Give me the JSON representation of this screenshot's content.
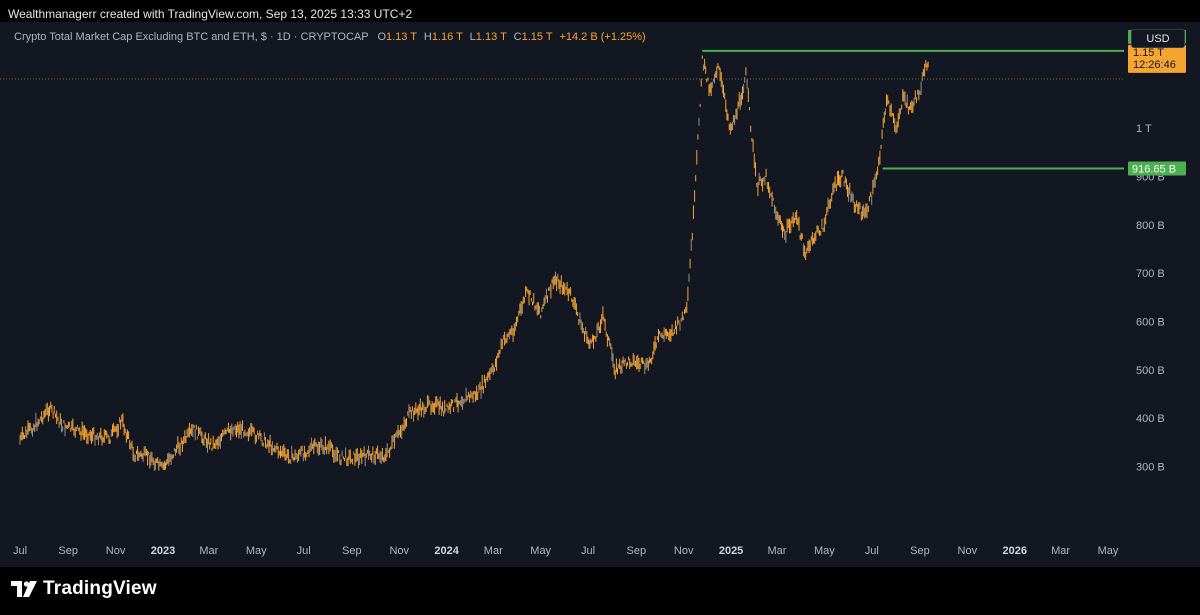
{
  "credit": "Wealthmanagerr created with TradingView.com, Sep 13, 2025 13:33 UTC+2",
  "legend": {
    "title": "Crypto Total Market Cap Excluding BTC and ETH, $ · 1D · CRYPTOCAP",
    "o_label": "O",
    "o_value": "1.13 T",
    "h_label": "H",
    "h_value": "1.16 T",
    "l_label": "L",
    "l_value": "1.13 T",
    "c_label": "C",
    "c_value": "1.15 T",
    "change": "+14.2 B (+1.25%)"
  },
  "currency_button": "USD",
  "brand": {
    "name": "TradingView",
    "icon": "tradingview-logo-icon"
  },
  "colors": {
    "page": "#000000",
    "panel": "#131722",
    "candle": "#f7a531",
    "hline": "#4caf50",
    "label_green": "#4caf50",
    "label_orange": "#f7a531",
    "axis_text": "#b2b5be"
  },
  "chart_data": {
    "type": "line",
    "title": "Crypto Total Market Cap Excluding BTC and ETH, $ · 1D · CRYPTOCAP",
    "x_ticks": [
      "Jul",
      "Sep",
      "Nov",
      "2023",
      "Mar",
      "May",
      "Jul",
      "Sep",
      "Nov",
      "2024",
      "Mar",
      "May",
      "Jul",
      "Sep",
      "Nov",
      "2025",
      "Mar",
      "May",
      "Jul",
      "Sep",
      "Nov",
      "2026",
      "Mar",
      "May"
    ],
    "y_ticks": [
      "1 T",
      "900 B",
      "800 B",
      "700 B",
      "600 B",
      "500 B",
      "400 B",
      "300 B"
    ],
    "y_range": [
      255,
      1200
    ],
    "series": [
      {
        "values_unit": "B",
        "dates": [
          "2022-07-01",
          "2022-07-20",
          "2022-08-08",
          "2022-08-25",
          "2022-09-10",
          "2022-10-01",
          "2022-10-25",
          "2022-11-09",
          "2022-11-25",
          "2022-12-15",
          "2022-12-31",
          "2023-01-20",
          "2023-02-10",
          "2023-03-05",
          "2023-03-10",
          "2023-04-01",
          "2023-04-18",
          "2023-05-10",
          "2023-06-10",
          "2023-06-20",
          "2023-07-14",
          "2023-08-01",
          "2023-08-18",
          "2023-09-11",
          "2023-10-01",
          "2023-10-15",
          "2023-11-01",
          "2023-11-15",
          "2023-12-01",
          "2023-12-15",
          "2023-12-31",
          "2024-01-20",
          "2024-02-10",
          "2024-03-01",
          "2024-03-14",
          "2024-03-28",
          "2024-04-13",
          "2024-05-01",
          "2024-05-20",
          "2024-06-10",
          "2024-06-25",
          "2024-07-05",
          "2024-07-20",
          "2024-08-05",
          "2024-08-25",
          "2024-09-15",
          "2024-10-01",
          "2024-10-20",
          "2024-11-05",
          "2024-11-15",
          "2024-11-25",
          "2024-12-05",
          "2024-12-15",
          "2024-12-31",
          "2025-01-10",
          "2025-01-20",
          "2025-02-03",
          "2025-02-15",
          "2025-03-01",
          "2025-03-11",
          "2025-03-25",
          "2025-04-07",
          "2025-04-20",
          "2025-05-01",
          "2025-05-12",
          "2025-05-25",
          "2025-06-10",
          "2025-06-22",
          "2025-07-01",
          "2025-07-10",
          "2025-07-20",
          "2025-08-01",
          "2025-08-10",
          "2025-08-20",
          "2025-09-01",
          "2025-09-13"
        ],
        "values": [
          355,
          385,
          420,
          385,
          375,
          365,
          360,
          395,
          325,
          320,
          295,
          340,
          375,
          345,
          350,
          380,
          375,
          355,
          320,
          320,
          340,
          340,
          318,
          320,
          325,
          322,
          370,
          410,
          420,
          430,
          415,
          440,
          450,
          500,
          560,
          585,
          660,
          620,
          690,
          650,
          580,
          550,
          610,
          500,
          520,
          505,
          570,
          580,
          620,
          850,
          1140,
          1080,
          1130,
          1000,
          1040,
          1110,
          880,
          900,
          820,
          780,
          820,
          740,
          780,
          800,
          875,
          900,
          840,
          820,
          860,
          930,
          1060,
          1000,
          1060,
          1040,
          1080,
          1150
        ]
      }
    ],
    "horizontal_levels": [
      {
        "value": 1160,
        "label": "1.16 T"
      },
      {
        "value": 916.65,
        "label": "916.65 B"
      }
    ],
    "price_labels": [
      {
        "label": "1.16 T",
        "color": "#4caf50"
      },
      {
        "label": "1.15 T",
        "sub": "12:26:46",
        "color": "#f7a531"
      },
      {
        "label": "916.65 B",
        "color": "#4caf50"
      }
    ],
    "grid": false,
    "legend_position": "top-left"
  }
}
